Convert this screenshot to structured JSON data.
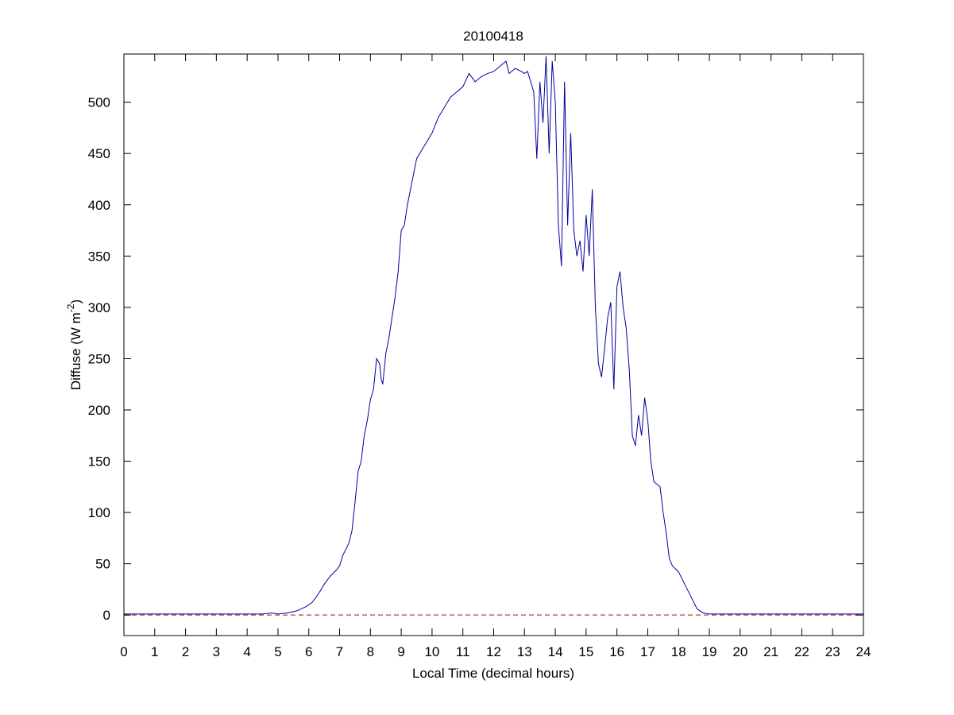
{
  "chart_data": {
    "type": "line",
    "title": "20100418",
    "x_label": "Local Time (decimal hours)",
    "y_label": [
      "Diffuse (W m",
      "-2",
      ")"
    ],
    "xlim": [
      0,
      24
    ],
    "xticks": [
      0,
      1,
      2,
      3,
      4,
      5,
      6,
      7,
      8,
      9,
      10,
      11,
      12,
      13,
      14,
      15,
      16,
      17,
      18,
      19,
      20,
      21,
      22,
      23,
      24
    ],
    "ylim": [
      -20,
      547
    ],
    "yticks": [
      0,
      50,
      100,
      150,
      200,
      250,
      300,
      350,
      400,
      450,
      500
    ],
    "reference_line": {
      "y": 0,
      "color": "#cc0000",
      "dashed": true
    },
    "x": [
      0,
      4,
      4.5,
      4.8,
      5.0,
      5.3,
      5.6,
      5.9,
      6.1,
      6.3,
      6.5,
      6.7,
      6.9,
      7.0,
      7.1,
      7.3,
      7.4,
      7.5,
      7.6,
      7.7,
      7.8,
      7.9,
      8.0,
      8.1,
      8.2,
      8.3,
      8.35,
      8.4,
      8.5,
      8.6,
      8.7,
      8.8,
      8.9,
      9.0,
      9.1,
      9.2,
      9.3,
      9.4,
      9.5,
      9.7,
      9.9,
      10.0,
      10.2,
      10.4,
      10.6,
      10.8,
      11.0,
      11.2,
      11.4,
      11.6,
      11.8,
      12.0,
      12.2,
      12.4,
      12.5,
      12.7,
      12.9,
      13.0,
      13.1,
      13.2,
      13.3,
      13.4,
      13.5,
      13.6,
      13.7,
      13.8,
      13.9,
      14.0,
      14.1,
      14.2,
      14.3,
      14.4,
      14.5,
      14.6,
      14.7,
      14.8,
      14.9,
      15.0,
      15.1,
      15.2,
      15.3,
      15.4,
      15.5,
      15.6,
      15.7,
      15.8,
      15.9,
      16.0,
      16.1,
      16.2,
      16.3,
      16.4,
      16.5,
      16.6,
      16.7,
      16.8,
      16.9,
      17.0,
      17.1,
      17.2,
      17.4,
      17.5,
      17.6,
      17.7,
      17.8,
      18.0,
      18.2,
      18.4,
      18.6,
      18.8,
      19.0,
      20,
      22,
      24
    ],
    "series": [
      {
        "name": "Diffuse",
        "color": "#0000a0",
        "values": [
          1,
          1,
          1,
          2,
          1,
          2,
          4,
          8,
          12,
          20,
          30,
          38,
          44,
          48,
          58,
          70,
          82,
          110,
          140,
          150,
          175,
          190,
          210,
          220,
          250,
          245,
          230,
          225,
          255,
          270,
          290,
          310,
          335,
          375,
          380,
          400,
          415,
          430,
          445,
          455,
          465,
          470,
          485,
          495,
          505,
          510,
          515,
          528,
          520,
          525,
          528,
          530,
          535,
          540,
          528,
          533,
          530,
          528,
          530,
          520,
          510,
          445,
          520,
          480,
          545,
          450,
          540,
          500,
          380,
          340,
          520,
          380,
          470,
          375,
          350,
          365,
          335,
          390,
          350,
          415,
          300,
          245,
          232,
          260,
          290,
          305,
          220,
          320,
          335,
          300,
          280,
          240,
          175,
          165,
          195,
          175,
          212,
          190,
          150,
          130,
          125,
          100,
          80,
          55,
          48,
          42,
          30,
          18,
          6,
          2,
          1,
          1,
          1,
          1
        ]
      }
    ]
  }
}
